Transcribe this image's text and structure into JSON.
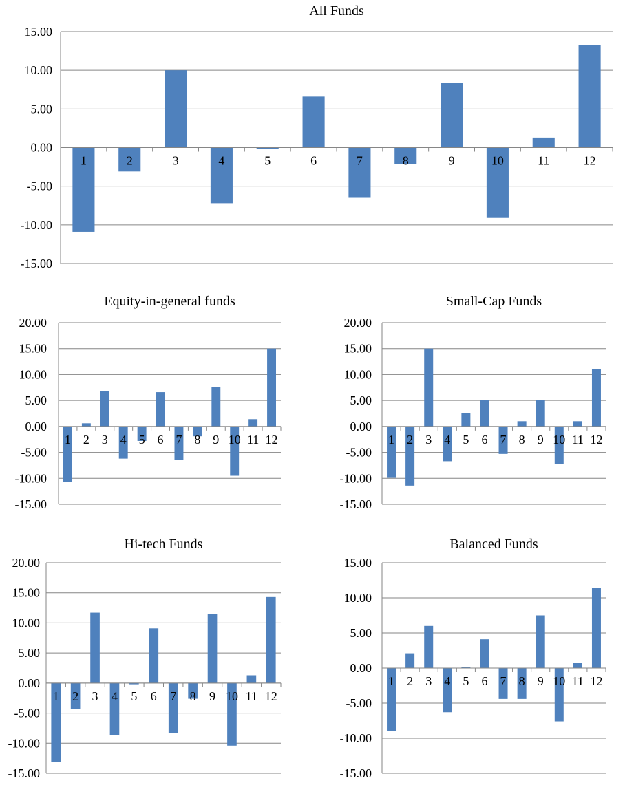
{
  "chart_data": [
    {
      "type": "bar",
      "title": "All Funds",
      "categories": [
        "1",
        "2",
        "3",
        "4",
        "5",
        "6",
        "7",
        "8",
        "9",
        "10",
        "11",
        "12"
      ],
      "values": [
        -10.9,
        -3.1,
        10.0,
        -7.2,
        -0.2,
        6.6,
        -6.5,
        -2.1,
        8.4,
        -9.1,
        1.3,
        13.3
      ],
      "yticks": [
        "15.00",
        "10.00",
        "5.00",
        "0.00",
        "-5.00",
        "-10.00",
        "-15.00"
      ],
      "ylim": [
        -15,
        15
      ],
      "grid": true,
      "bar_color": "#4f81bd"
    },
    {
      "type": "bar",
      "title": "Equity-in-general funds",
      "categories": [
        "1",
        "2",
        "3",
        "4",
        "5",
        "6",
        "7",
        "8",
        "9",
        "10",
        "11",
        "12"
      ],
      "values": [
        -10.7,
        0.6,
        6.8,
        -6.2,
        -2.8,
        6.6,
        -6.4,
        -1.9,
        7.6,
        -9.5,
        1.4,
        15.0
      ],
      "yticks": [
        "20.00",
        "15.00",
        "10.00",
        "5.00",
        "0.00",
        "-5.00",
        "-10.00",
        "-15.00"
      ],
      "ylim": [
        -15,
        20
      ],
      "grid": true,
      "bar_color": "#4f81bd"
    },
    {
      "type": "bar",
      "title": "Small-Cap Funds",
      "categories": [
        "1",
        "2",
        "3",
        "4",
        "5",
        "6",
        "7",
        "8",
        "9",
        "10",
        "11",
        "12"
      ],
      "values": [
        -9.9,
        -11.4,
        15.0,
        -6.7,
        2.6,
        5.1,
        -5.3,
        1.0,
        5.1,
        -7.3,
        1.0,
        11.1
      ],
      "yticks": [
        "20.00",
        "15.00",
        "10.00",
        "5.00",
        "0.00",
        "-5.00",
        "-10.00",
        "-15.00"
      ],
      "ylim": [
        -15,
        20
      ],
      "grid": true,
      "bar_color": "#4f81bd"
    },
    {
      "type": "bar",
      "title": "Hi-tech Funds",
      "categories": [
        "1",
        "2",
        "3",
        "4",
        "5",
        "6",
        "7",
        "8",
        "9",
        "10",
        "11",
        "12"
      ],
      "values": [
        -13.1,
        -4.3,
        11.7,
        -8.6,
        -0.2,
        9.1,
        -8.3,
        -2.6,
        11.5,
        -10.4,
        1.3,
        14.3
      ],
      "yticks": [
        "20.00",
        "15.00",
        "10.00",
        "5.00",
        "0.00",
        "-5.00",
        "-10.00",
        "-15.00"
      ],
      "ylim": [
        -15,
        20
      ],
      "grid": true,
      "bar_color": "#4f81bd"
    },
    {
      "type": "bar",
      "title": "Balanced Funds",
      "categories": [
        "1",
        "2",
        "3",
        "4",
        "5",
        "6",
        "7",
        "8",
        "9",
        "10",
        "11",
        "12"
      ],
      "values": [
        -9.0,
        2.1,
        6.0,
        -6.3,
        0.1,
        4.1,
        -4.4,
        -4.4,
        7.5,
        -7.6,
        0.7,
        11.4
      ],
      "yticks": [
        "15.00",
        "10.00",
        "5.00",
        "0.00",
        "-5.00",
        "-10.00",
        "-15.00"
      ],
      "ylim": [
        -15,
        15
      ],
      "grid": true,
      "bar_color": "#4f81bd"
    }
  ]
}
